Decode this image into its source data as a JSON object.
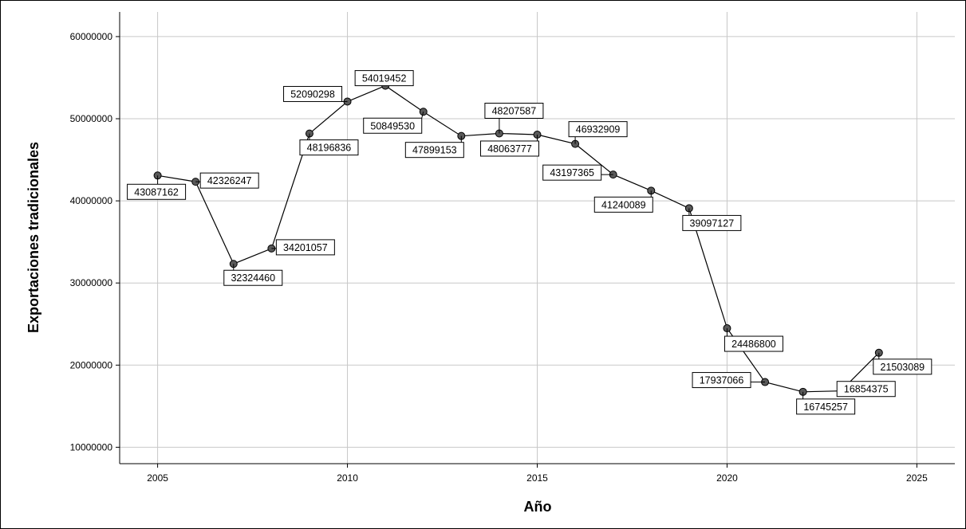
{
  "chart_data": {
    "type": "line",
    "xlabel": "Año",
    "ylabel": "Exportaciones tradicionales",
    "xlim": [
      2004,
      2026
    ],
    "ylim": [
      8000000,
      63000000
    ],
    "x_ticks": [
      2005,
      2010,
      2015,
      2020,
      2025
    ],
    "x_tick_labels": [
      "2005",
      "2010",
      "2015",
      "2020",
      "2025"
    ],
    "y_ticks": [
      10000000,
      20000000,
      30000000,
      40000000,
      50000000,
      60000000
    ],
    "y_tick_labels": [
      "10000000",
      "20000000",
      "30000000",
      "40000000",
      "50000000",
      "60000000"
    ],
    "grid": true,
    "series": [
      {
        "x": [
          2005,
          2006,
          2007,
          2008,
          2009,
          2010,
          2011,
          2012,
          2013,
          2014,
          2015,
          2016,
          2017,
          2018,
          2019,
          2020,
          2021,
          2022,
          2023,
          2024
        ],
        "values": [
          43087162,
          42326247,
          32324460,
          34201057,
          48196836,
          52090298,
          54019452,
          50849530,
          47899153,
          48207587,
          48063777,
          46932909,
          43197365,
          41240089,
          39097127,
          24486800,
          17937066,
          16745257,
          16854375,
          21503089
        ],
        "data_labels": [
          "43087162",
          "42326247",
          "32324460",
          "34201057",
          "48196836",
          "52090298",
          "54019452",
          "50849530",
          "47899153",
          "48207587",
          "48063777",
          "46932909",
          "43197365",
          "41240089",
          "39097127",
          "24486800",
          "17937066",
          "16745257",
          "16854375",
          "21503089"
        ]
      }
    ],
    "colors": {
      "line": "#000000",
      "marker_fill": "#595959",
      "grid": "#c8c8c8"
    }
  }
}
